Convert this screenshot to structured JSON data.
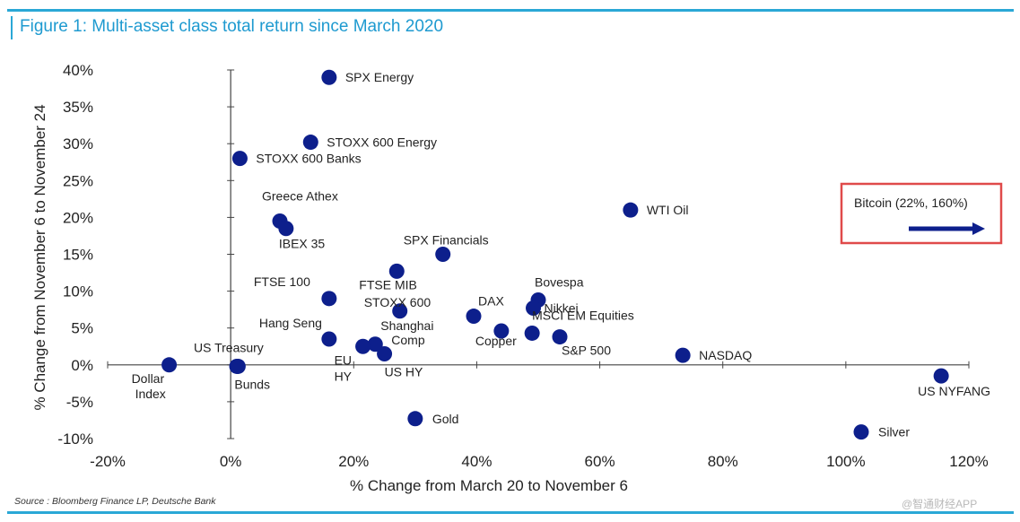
{
  "title": "Figure 1: Multi-asset class total return since March 2020",
  "source": "Source : Bloomberg Finance LP, Deutsche Bank",
  "watermark": "@智通财经APP",
  "colors": {
    "accent": "#2aa8d6",
    "marker": "#0d1f8c",
    "callout_border": "#e04a4a",
    "arrow": "#0d1f8c"
  },
  "chart_data": {
    "type": "scatter",
    "title": "Figure 1: Multi-asset class total return since March 2020",
    "xlabel": "% Change from March 20 to November 6",
    "ylabel": "% Change from November 6 to November 24",
    "xlim": [
      -20,
      120
    ],
    "ylim": [
      -10,
      40
    ],
    "x_ticks": [
      "-20%",
      "0%",
      "20%",
      "40%",
      "60%",
      "80%",
      "100%",
      "120%"
    ],
    "y_ticks": [
      "40%",
      "35%",
      "30%",
      "25%",
      "20%",
      "15%",
      "10%",
      "5%",
      "0%",
      "-5%",
      "-10%"
    ],
    "grid": false,
    "points": [
      {
        "label": "SPX Energy",
        "x": 16,
        "y": 39
      },
      {
        "label": "STOXX 600 Energy",
        "x": 13,
        "y": 30.2
      },
      {
        "label": "STOXX 600 Banks",
        "x": 1.5,
        "y": 28
      },
      {
        "label": "Greece Athex",
        "x": 8,
        "y": 19.5
      },
      {
        "label": "IBEX 35",
        "x": 9,
        "y": 18.5
      },
      {
        "label": "WTI Oil",
        "x": 65,
        "y": 21
      },
      {
        "label": "SPX Financials",
        "x": 34.5,
        "y": 15
      },
      {
        "label": "FTSE MIB",
        "x": 27,
        "y": 12.7
      },
      {
        "label": "FTSE 100",
        "x": 16,
        "y": 9
      },
      {
        "label": "STOXX 600",
        "x": 27.5,
        "y": 7.3
      },
      {
        "label": "Bovespa",
        "x": 50,
        "y": 8.8
      },
      {
        "label": "Nikkei",
        "x": 49.2,
        "y": 7.7
      },
      {
        "label": "DAX",
        "x": 39.5,
        "y": 6.6
      },
      {
        "label": "Hang Seng",
        "x": 16,
        "y": 3.5
      },
      {
        "label": "MSCI EM Equities",
        "x": 49,
        "y": 4.3
      },
      {
        "label": "Copper",
        "x": 44,
        "y": 4.6
      },
      {
        "label": "S&P 500",
        "x": 53.5,
        "y": 3.8
      },
      {
        "label": "Shanghai Comp",
        "x": 23.5,
        "y": 2.8
      },
      {
        "label": "EU HY",
        "x": 21.5,
        "y": 2.5
      },
      {
        "label": "US HY",
        "x": 25,
        "y": 1.5
      },
      {
        "label": "US Treasury",
        "x": 1,
        "y": -0.2
      },
      {
        "label": "Bunds",
        "x": 1.2,
        "y": -0.2
      },
      {
        "label": "Dollar Index",
        "x": -10,
        "y": 0
      },
      {
        "label": "NASDAQ",
        "x": 73.5,
        "y": 1.3
      },
      {
        "label": "US NYFANG",
        "x": 115.5,
        "y": -1.5
      },
      {
        "label": "Gold",
        "x": 30,
        "y": -7.3
      },
      {
        "label": "Silver",
        "x": 102.5,
        "y": -9.1
      }
    ],
    "annotations": [
      {
        "text": "Bitcoin (22%, 160%)"
      }
    ]
  }
}
